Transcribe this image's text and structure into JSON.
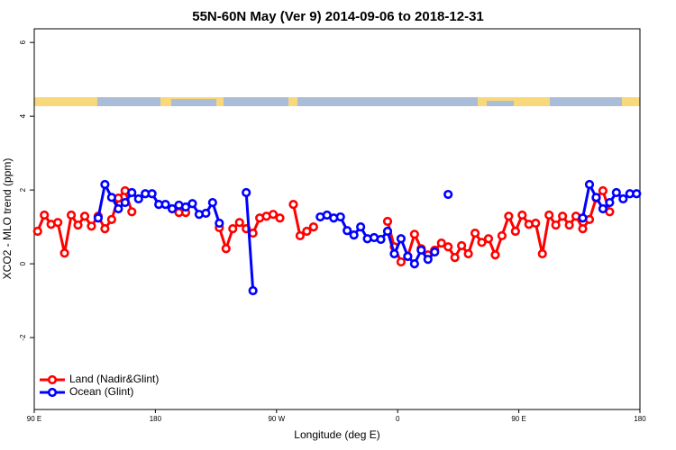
{
  "chart_data": {
    "type": "line",
    "title": "55N-60N May (Ver 9)   2014-09-06 to 2018-12-31",
    "xlabel": "Longitude (deg E)",
    "ylabel": "XCO2 - MLO trend (ppm)",
    "x": [
      92.5,
      97.5,
      102.5,
      107.5,
      112.5,
      117.5,
      122.5,
      127.5,
      132.5,
      137.5,
      142.5,
      147.5,
      152.5,
      157.5,
      162.5,
      167.5,
      172.5,
      177.5,
      182.5,
      187.5,
      192.5,
      197.5,
      202.5,
      207.5,
      212.5,
      217.5,
      222.5,
      227.5,
      232.5,
      237.5,
      242.5,
      247.5,
      252.5,
      257.5,
      262.5,
      267.5,
      272.5,
      277.5,
      282.5,
      287.5,
      292.5,
      297.5,
      302.5,
      307.5,
      312.5,
      317.5,
      322.5,
      327.5,
      332.5,
      337.5,
      342.5,
      347.5,
      352.5,
      357.5,
      362.5,
      367.5,
      372.5,
      377.5,
      382.5,
      387.5,
      392.5,
      397.5,
      402.5,
      407.5,
      412.5,
      417.5,
      422.5,
      427.5,
      432.5,
      437.5,
      442.5,
      447.5,
      452.5,
      457.5,
      462.5,
      467.5,
      472.5,
      477.5,
      482.5,
      487.5,
      492.5,
      497.5,
      502.5,
      507.5,
      512.5,
      517.5,
      522.5,
      527.5,
      532.5,
      537.5
    ],
    "series": [
      {
        "name": "Land (Nadir&Glint)",
        "color": "#ff0000",
        "values": [
          0.88,
          1.32,
          1.07,
          1.12,
          0.29,
          1.32,
          1.05,
          1.29,
          1.02,
          1.29,
          0.95,
          1.2,
          1.78,
          1.98,
          1.41,
          null,
          null,
          null,
          null,
          null,
          null,
          1.39,
          1.39,
          null,
          null,
          null,
          null,
          0.98,
          0.41,
          0.95,
          1.12,
          0.95,
          0.83,
          1.24,
          1.29,
          1.34,
          1.24,
          null,
          1.61,
          0.76,
          0.88,
          1.0,
          null,
          null,
          null,
          null,
          null,
          null,
          null,
          null,
          null,
          null,
          1.15,
          0.46,
          0.05,
          0.2,
          0.8,
          0.41,
          0.24,
          0.37,
          0.56,
          0.46,
          0.17,
          0.49,
          0.27,
          0.83,
          0.58,
          0.68,
          0.24,
          0.76,
          1.29,
          0.88,
          1.32,
          1.07,
          1.1,
          0.27,
          1.32,
          1.05,
          1.29,
          1.05,
          1.29,
          0.95,
          1.2,
          1.78,
          1.98,
          1.41,
          null,
          null,
          null,
          null
        ]
      },
      {
        "name": "Ocean (Glint)",
        "color": "#0000ff",
        "values": [
          null,
          null,
          null,
          null,
          null,
          null,
          null,
          null,
          null,
          1.24,
          2.15,
          1.8,
          1.49,
          1.66,
          1.93,
          1.76,
          1.9,
          1.9,
          1.61,
          1.61,
          1.49,
          1.59,
          1.54,
          1.63,
          1.34,
          1.37,
          1.66,
          1.1,
          null,
          null,
          null,
          1.93,
          -0.73,
          null,
          null,
          null,
          null,
          null,
          null,
          null,
          null,
          null,
          1.27,
          1.32,
          1.24,
          1.27,
          0.9,
          0.78,
          1.0,
          0.68,
          0.71,
          0.66,
          0.88,
          0.27,
          0.68,
          0.2,
          0.0,
          0.37,
          0.12,
          0.32,
          null,
          1.88,
          null,
          null,
          null,
          null,
          null,
          null,
          null,
          null,
          null,
          null,
          null,
          null,
          null,
          null,
          null,
          null,
          null,
          null,
          null,
          1.24,
          2.15,
          1.8,
          1.49,
          1.66,
          1.93,
          1.76,
          1.9,
          1.9
        ]
      }
    ],
    "xlim": [
      90,
      540
    ],
    "xticks": [
      {
        "value": 90,
        "label": "90 E"
      },
      180,
      {
        "value": 270,
        "label": "90 W"
      },
      {
        "value": 360,
        "label": "0"
      },
      {
        "value": 450,
        "label": "90 E"
      },
      {
        "value": 540,
        "label": "180"
      }
    ],
    "ylim": [
      -3.95,
      6.37
    ],
    "yticks": [
      -2,
      0,
      2,
      4,
      6
    ],
    "legend": "bottom-left"
  }
}
